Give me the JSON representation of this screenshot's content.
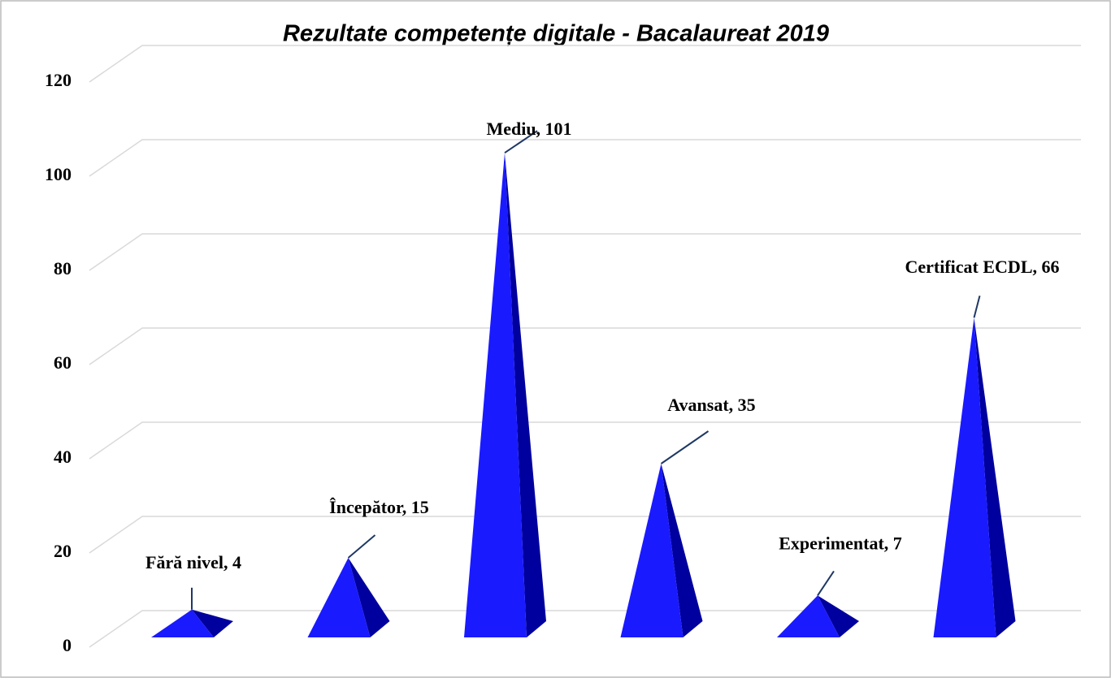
{
  "chart_data": {
    "type": "pyramid3d",
    "title": "Rezultate competențe digitale - Bacalaureat 2019",
    "categories": [
      "Fără nivel",
      "Începător",
      "Mediu",
      "Avansat",
      "Experimentat",
      "Certificat ECDL"
    ],
    "values": [
      4,
      15,
      101,
      35,
      7,
      66
    ],
    "value_labels": [
      "Fără nivel, 4",
      "Începător, 15",
      "Mediu, 101",
      "Avansat, 35",
      "Experimentat, 7",
      "Certificat ECDL, 66"
    ],
    "color": "#1a1aff",
    "ylim": [
      0,
      120
    ],
    "yticks": [
      0,
      20,
      40,
      60,
      80,
      100,
      120
    ],
    "grid": true
  }
}
